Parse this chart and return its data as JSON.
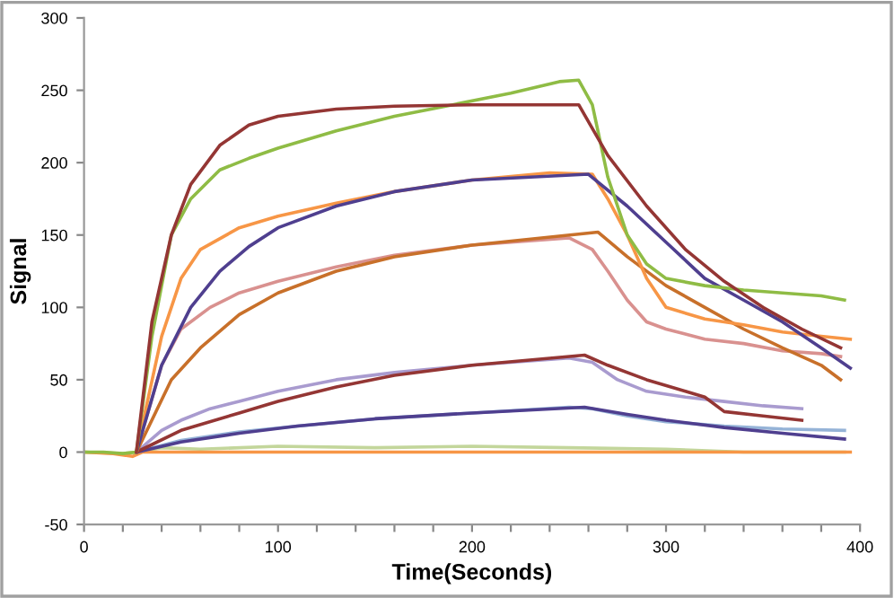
{
  "chart_data": {
    "type": "line",
    "xlabel": "Time(Seconds)",
    "ylabel": "Signal",
    "xlim": [
      0,
      400
    ],
    "ylim": [
      -50,
      300
    ],
    "xticks": [
      0,
      {
        "value": 20,
        "label": null
      },
      {
        "value": 40,
        "label": null
      },
      {
        "value": 60,
        "label": null
      },
      {
        "value": 80,
        "label": null
      },
      100,
      {
        "value": 120,
        "label": null
      },
      {
        "value": 140,
        "label": null
      },
      {
        "value": 160,
        "label": null
      },
      {
        "value": 180,
        "label": null
      },
      200,
      {
        "value": 220,
        "label": null
      },
      {
        "value": 240,
        "label": null
      },
      {
        "value": 260,
        "label": null
      },
      {
        "value": 280,
        "label": null
      },
      300,
      {
        "value": 320,
        "label": null
      },
      {
        "value": 340,
        "label": null
      },
      {
        "value": 360,
        "label": null
      },
      {
        "value": 380,
        "label": null
      },
      400
    ],
    "yticks": [
      -50,
      0,
      50,
      100,
      150,
      200,
      250,
      300
    ],
    "grid": false,
    "marker": "none",
    "line_style": "solid",
    "series": [
      {
        "color": "#c3d69b",
        "x": [
          0,
          20,
          27,
          40,
          60,
          100,
          150,
          200,
          250,
          300,
          340,
          392
        ],
        "values": [
          0,
          -1,
          0,
          3,
          2,
          4,
          3,
          4,
          3,
          2,
          0,
          0
        ]
      },
      {
        "color": "#f79646",
        "x": [
          0,
          15,
          25,
          30,
          60,
          395
        ],
        "values": [
          0,
          -1,
          -3,
          0,
          0,
          0
        ]
      },
      {
        "color": "#95b3d7",
        "x": [
          27,
          50,
          80,
          110,
          150,
          200,
          250,
          262,
          280,
          300,
          330,
          360,
          392
        ],
        "values": [
          0,
          8,
          14,
          18,
          23,
          27,
          31,
          30,
          25,
          21,
          18,
          16,
          15
        ]
      },
      {
        "color": "#4f3f8f",
        "x": [
          27,
          50,
          80,
          110,
          150,
          200,
          258,
          280,
          300,
          330,
          360,
          392
        ],
        "values": [
          0,
          7,
          13,
          18,
          23,
          27,
          31,
          26,
          22,
          17,
          13,
          9
        ]
      },
      {
        "color": "#a99bcf",
        "x": [
          27,
          40,
          50,
          65,
          80,
          100,
          130,
          160,
          200,
          250,
          262,
          275,
          290,
          310,
          330,
          350,
          370
        ],
        "values": [
          0,
          15,
          22,
          30,
          35,
          42,
          50,
          55,
          60,
          65,
          62,
          50,
          42,
          38,
          35,
          32,
          30
        ]
      },
      {
        "color": "#943634",
        "x": [
          27,
          50,
          80,
          100,
          130,
          160,
          200,
          258,
          270,
          290,
          310,
          320,
          330,
          350,
          370
        ],
        "values": [
          0,
          15,
          27,
          35,
          45,
          53,
          60,
          67,
          60,
          50,
          42,
          38,
          28,
          25,
          22
        ]
      },
      {
        "color": "#d9918f",
        "x": [
          27,
          40,
          50,
          65,
          80,
          100,
          130,
          160,
          200,
          250,
          262,
          270,
          280,
          290,
          300,
          320,
          340,
          360,
          380,
          390
        ],
        "values": [
          0,
          60,
          85,
          100,
          110,
          118,
          128,
          136,
          143,
          148,
          140,
          125,
          105,
          90,
          85,
          78,
          75,
          70,
          68,
          66
        ]
      },
      {
        "color": "#c8702a",
        "x": [
          27,
          45,
          60,
          80,
          100,
          130,
          160,
          200,
          265,
          280,
          300,
          320,
          340,
          360,
          380,
          390
        ],
        "values": [
          0,
          50,
          72,
          95,
          110,
          125,
          135,
          143,
          152,
          135,
          115,
          100,
          85,
          72,
          60,
          50
        ]
      },
      {
        "color": "#f79646",
        "x": [
          27,
          40,
          50,
          60,
          80,
          100,
          130,
          160,
          200,
          240,
          262,
          270,
          280,
          290,
          300,
          320,
          340,
          360,
          380,
          395
        ],
        "values": [
          0,
          80,
          120,
          140,
          155,
          163,
          172,
          180,
          188,
          193,
          192,
          175,
          150,
          120,
          100,
          92,
          88,
          83,
          80,
          78
        ]
      },
      {
        "color": "#4f3f8f",
        "x": [
          27,
          40,
          55,
          70,
          85,
          100,
          130,
          160,
          200,
          260,
          280,
          300,
          320,
          340,
          360,
          380,
          395
        ],
        "values": [
          0,
          60,
          100,
          125,
          142,
          155,
          170,
          180,
          188,
          192,
          170,
          145,
          120,
          105,
          90,
          72,
          58
        ]
      },
      {
        "color": "#8fbc45",
        "x": [
          0,
          10,
          20,
          27,
          35,
          45,
          55,
          70,
          85,
          100,
          130,
          160,
          190,
          220,
          245,
          255,
          262,
          270,
          280,
          290,
          300,
          320,
          340,
          360,
          380,
          392
        ],
        "values": [
          0,
          0,
          -1,
          0,
          80,
          150,
          175,
          195,
          203,
          210,
          222,
          232,
          240,
          248,
          256,
          257,
          240,
          190,
          150,
          130,
          120,
          115,
          112,
          110,
          108,
          105
        ]
      },
      {
        "color": "#943634",
        "x": [
          27,
          35,
          45,
          55,
          70,
          85,
          100,
          130,
          160,
          200,
          255,
          270,
          290,
          310,
          330,
          350,
          370,
          390
        ],
        "values": [
          0,
          90,
          150,
          185,
          212,
          226,
          232,
          237,
          239,
          240,
          240,
          205,
          170,
          140,
          118,
          100,
          85,
          72
        ]
      }
    ]
  }
}
